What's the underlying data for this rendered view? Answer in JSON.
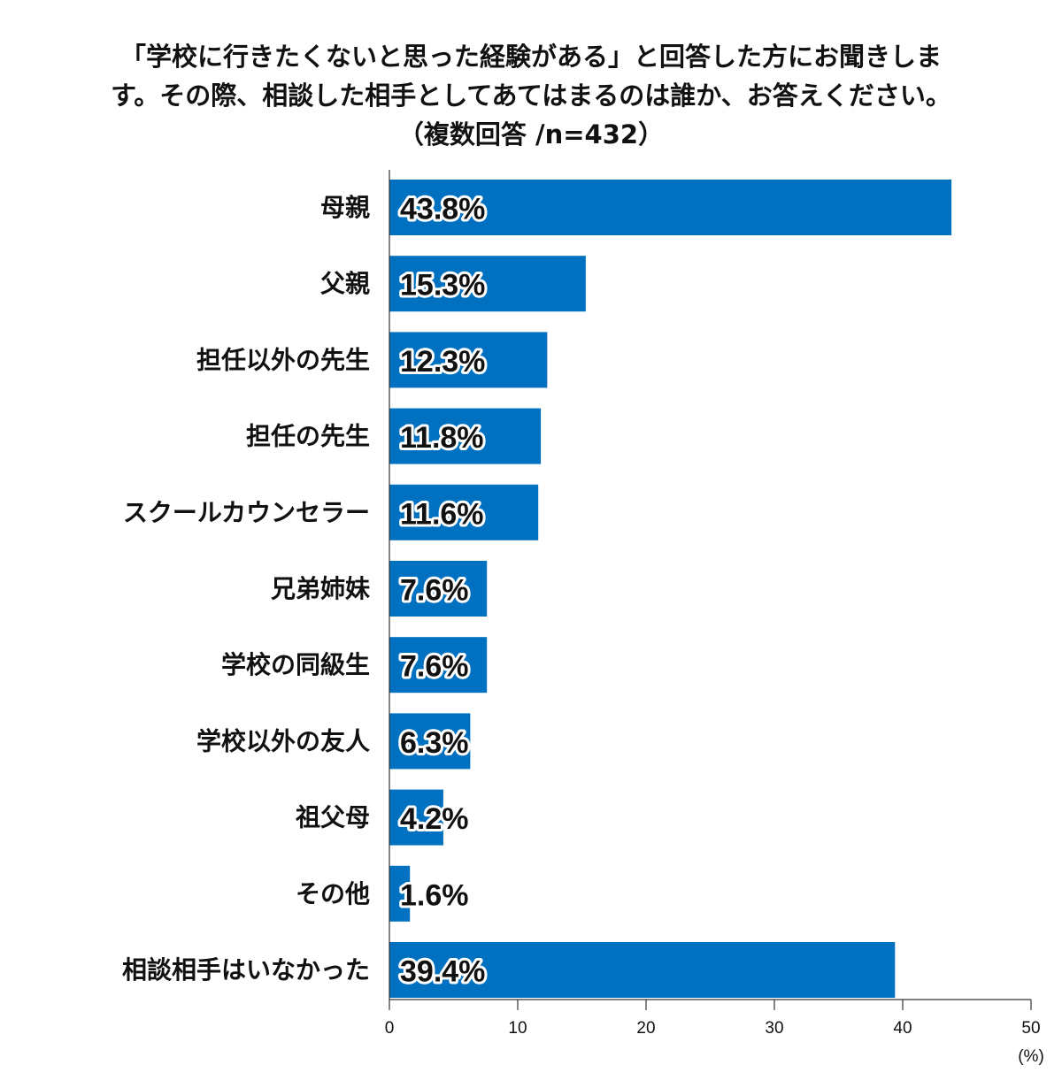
{
  "chart_data": {
    "type": "bar",
    "orientation": "horizontal",
    "title_lines": [
      "「学校に行きたくないと思った経験がある」と回答した方にお聞きしま",
      "す。その際、相談した相手としてあてはまるのは誰か、お答えください。",
      "（複数回答 /n=432）"
    ],
    "categories": [
      "母親",
      "父親",
      "担任以外の先生",
      "担任の先生",
      "スクールカウンセラー",
      "兄弟姉妹",
      "学校の同級生",
      "学校以外の友人",
      "祖父母",
      "その他",
      "相談相手はいなかった"
    ],
    "values": [
      43.8,
      15.3,
      12.3,
      11.8,
      11.6,
      7.6,
      7.6,
      6.3,
      4.2,
      1.6,
      39.4
    ],
    "value_labels": [
      "43.8%",
      "15.3%",
      "12.3%",
      "11.8%",
      "11.6%",
      "7.6%",
      "7.6%",
      "6.3%",
      "4.2%",
      "1.6%",
      "39.4%"
    ],
    "x_ticks": [
      0,
      10,
      20,
      30,
      40,
      50
    ],
    "xlim": [
      0,
      50
    ],
    "x_unit": "(%)",
    "bar_color": "#0070c0",
    "grid": false
  }
}
